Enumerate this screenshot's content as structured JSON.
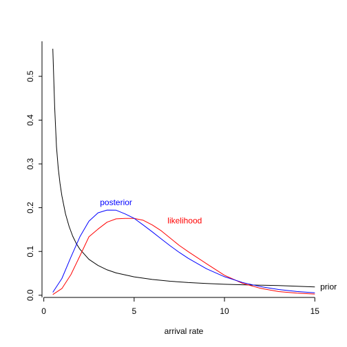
{
  "chart_data": {
    "type": "line",
    "title": "",
    "xlabel": "arrival rate",
    "ylabel": "",
    "xlim": [
      -0.1,
      15.6
    ],
    "ylim": [
      -0.005,
      0.58
    ],
    "grid": false,
    "x_ticks": [
      0,
      5,
      10,
      15
    ],
    "y_ticks": [
      0.0,
      0.1,
      0.2,
      0.3,
      0.4,
      0.5
    ],
    "x_tick_labels": [
      "0",
      "5",
      "10",
      "15"
    ],
    "y_tick_labels": [
      "0.0",
      "0.1",
      "0.2",
      "0.3",
      "0.4",
      "0.5"
    ],
    "series": [
      {
        "name": "prior",
        "color": "#000000",
        "x": [
          0.5,
          0.6,
          0.7,
          0.8,
          0.9,
          1.0,
          1.2,
          1.4,
          1.6,
          1.8,
          2.0,
          2.5,
          3.0,
          3.5,
          4.0,
          5.0,
          6.0,
          7.0,
          8.0,
          9.0,
          10.0,
          11.0,
          12.0,
          13.0,
          14.0,
          15.0
        ],
        "y": [
          0.563,
          0.43,
          0.34,
          0.29,
          0.255,
          0.227,
          0.186,
          0.157,
          0.135,
          0.118,
          0.105,
          0.082,
          0.068,
          0.058,
          0.051,
          0.042,
          0.036,
          0.032,
          0.029,
          0.027,
          0.025,
          0.024,
          0.023,
          0.022,
          0.0205,
          0.019
        ]
      },
      {
        "name": "likelihood",
        "color": "#ff0000",
        "x": [
          0.5,
          1.0,
          1.5,
          2.0,
          2.5,
          3.0,
          3.5,
          4.0,
          4.5,
          5.0,
          5.5,
          6.0,
          6.5,
          7.0,
          7.5,
          8.0,
          9.0,
          10.0,
          11.0,
          12.0,
          13.0,
          14.0,
          15.0
        ],
        "y": [
          0.0016,
          0.0153,
          0.0471,
          0.09,
          0.1336,
          0.1512,
          0.1669,
          0.1745,
          0.1755,
          0.1755,
          0.1713,
          0.1606,
          0.1472,
          0.1304,
          0.1137,
          0.0993,
          0.0722,
          0.0457,
          0.0272,
          0.0157,
          0.0084,
          0.0048,
          0.0027
        ]
      },
      {
        "name": "posterior",
        "color": "#0000ff",
        "x": [
          0.5,
          1.0,
          1.5,
          2.0,
          2.5,
          3.0,
          3.5,
          4.0,
          4.5,
          5.0,
          5.5,
          6.0,
          6.5,
          7.0,
          7.5,
          8.0,
          9.0,
          10.0,
          11.0,
          12.0,
          13.0,
          14.0,
          15.0
        ],
        "y": [
          0.0066,
          0.0383,
          0.0872,
          0.1337,
          0.1692,
          0.1882,
          0.1945,
          0.1942,
          0.1858,
          0.1757,
          0.1604,
          0.1448,
          0.1286,
          0.1128,
          0.0979,
          0.0841,
          0.0605,
          0.0424,
          0.0291,
          0.0197,
          0.0131,
          0.0086,
          0.0055
        ]
      }
    ],
    "annotations": [
      {
        "text": "prior",
        "color": "#000000",
        "x": 15.3,
        "y": 0.019
      },
      {
        "text": "likelihood",
        "color": "#ff0000",
        "x": 7.8,
        "y": 0.17
      },
      {
        "text": "posterior",
        "color": "#0000ff",
        "x": 4.0,
        "y": 0.212
      }
    ]
  }
}
